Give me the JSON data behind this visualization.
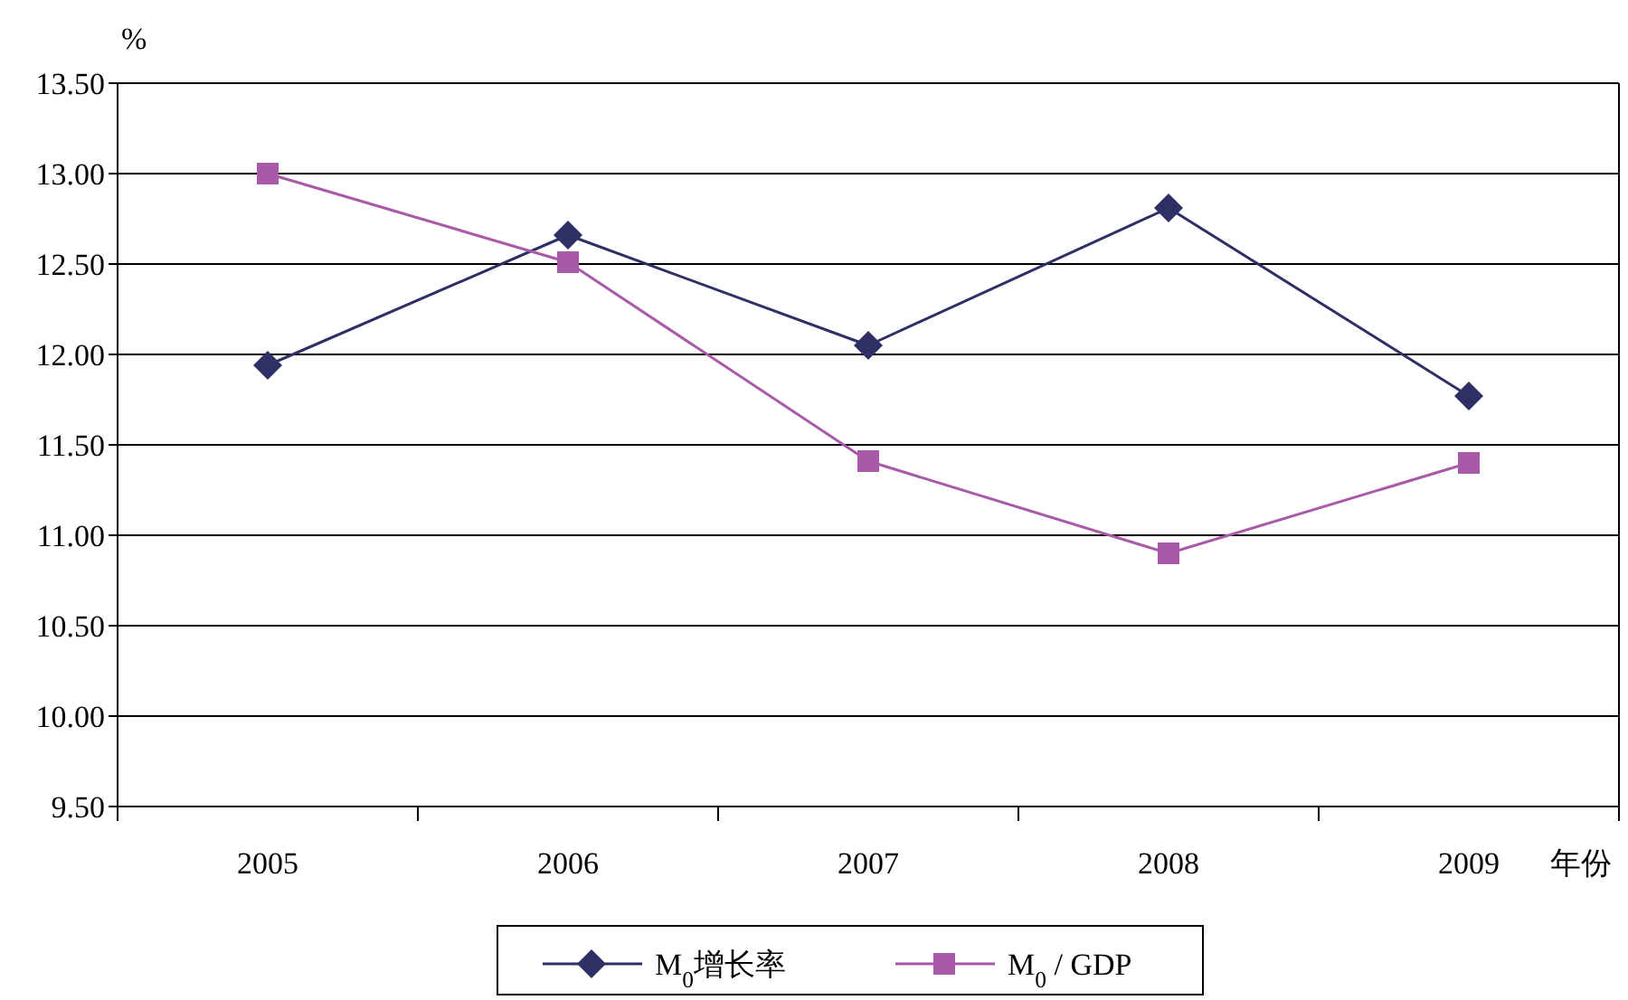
{
  "chart_data": {
    "type": "line",
    "ylabel": "%",
    "xlabel": "年份",
    "categories": [
      "2005",
      "2006",
      "2007",
      "2008",
      "2009"
    ],
    "ylim": [
      9.5,
      13.5
    ],
    "yticks": [
      {
        "value": 9.5,
        "label": "9.50"
      },
      {
        "value": 10,
        "label": "10.00"
      },
      {
        "value": 10.5,
        "label": "10.50"
      },
      {
        "value": 11,
        "label": "11.00"
      },
      {
        "value": 11.5,
        "label": "11.50"
      },
      {
        "value": 12,
        "label": "12.00"
      },
      {
        "value": 12.5,
        "label": "12.50"
      },
      {
        "value": 13,
        "label": "13.00"
      },
      {
        "value": 13.5,
        "label": "13.50"
      }
    ],
    "grid": "y",
    "legend": "bottom",
    "line_style": "solid",
    "series": [
      {
        "name": "M$_{0}$增长率",
        "color": "#2e2f64",
        "marker": "diamond",
        "values": [
          11.94,
          12.66,
          12.05,
          12.81,
          11.77
        ]
      },
      {
        "name": "M$_{0}$ / GDP",
        "color": "#a859a8",
        "marker": "square",
        "values": [
          13.0,
          12.51,
          11.41,
          10.9,
          11.4
        ]
      }
    ]
  }
}
